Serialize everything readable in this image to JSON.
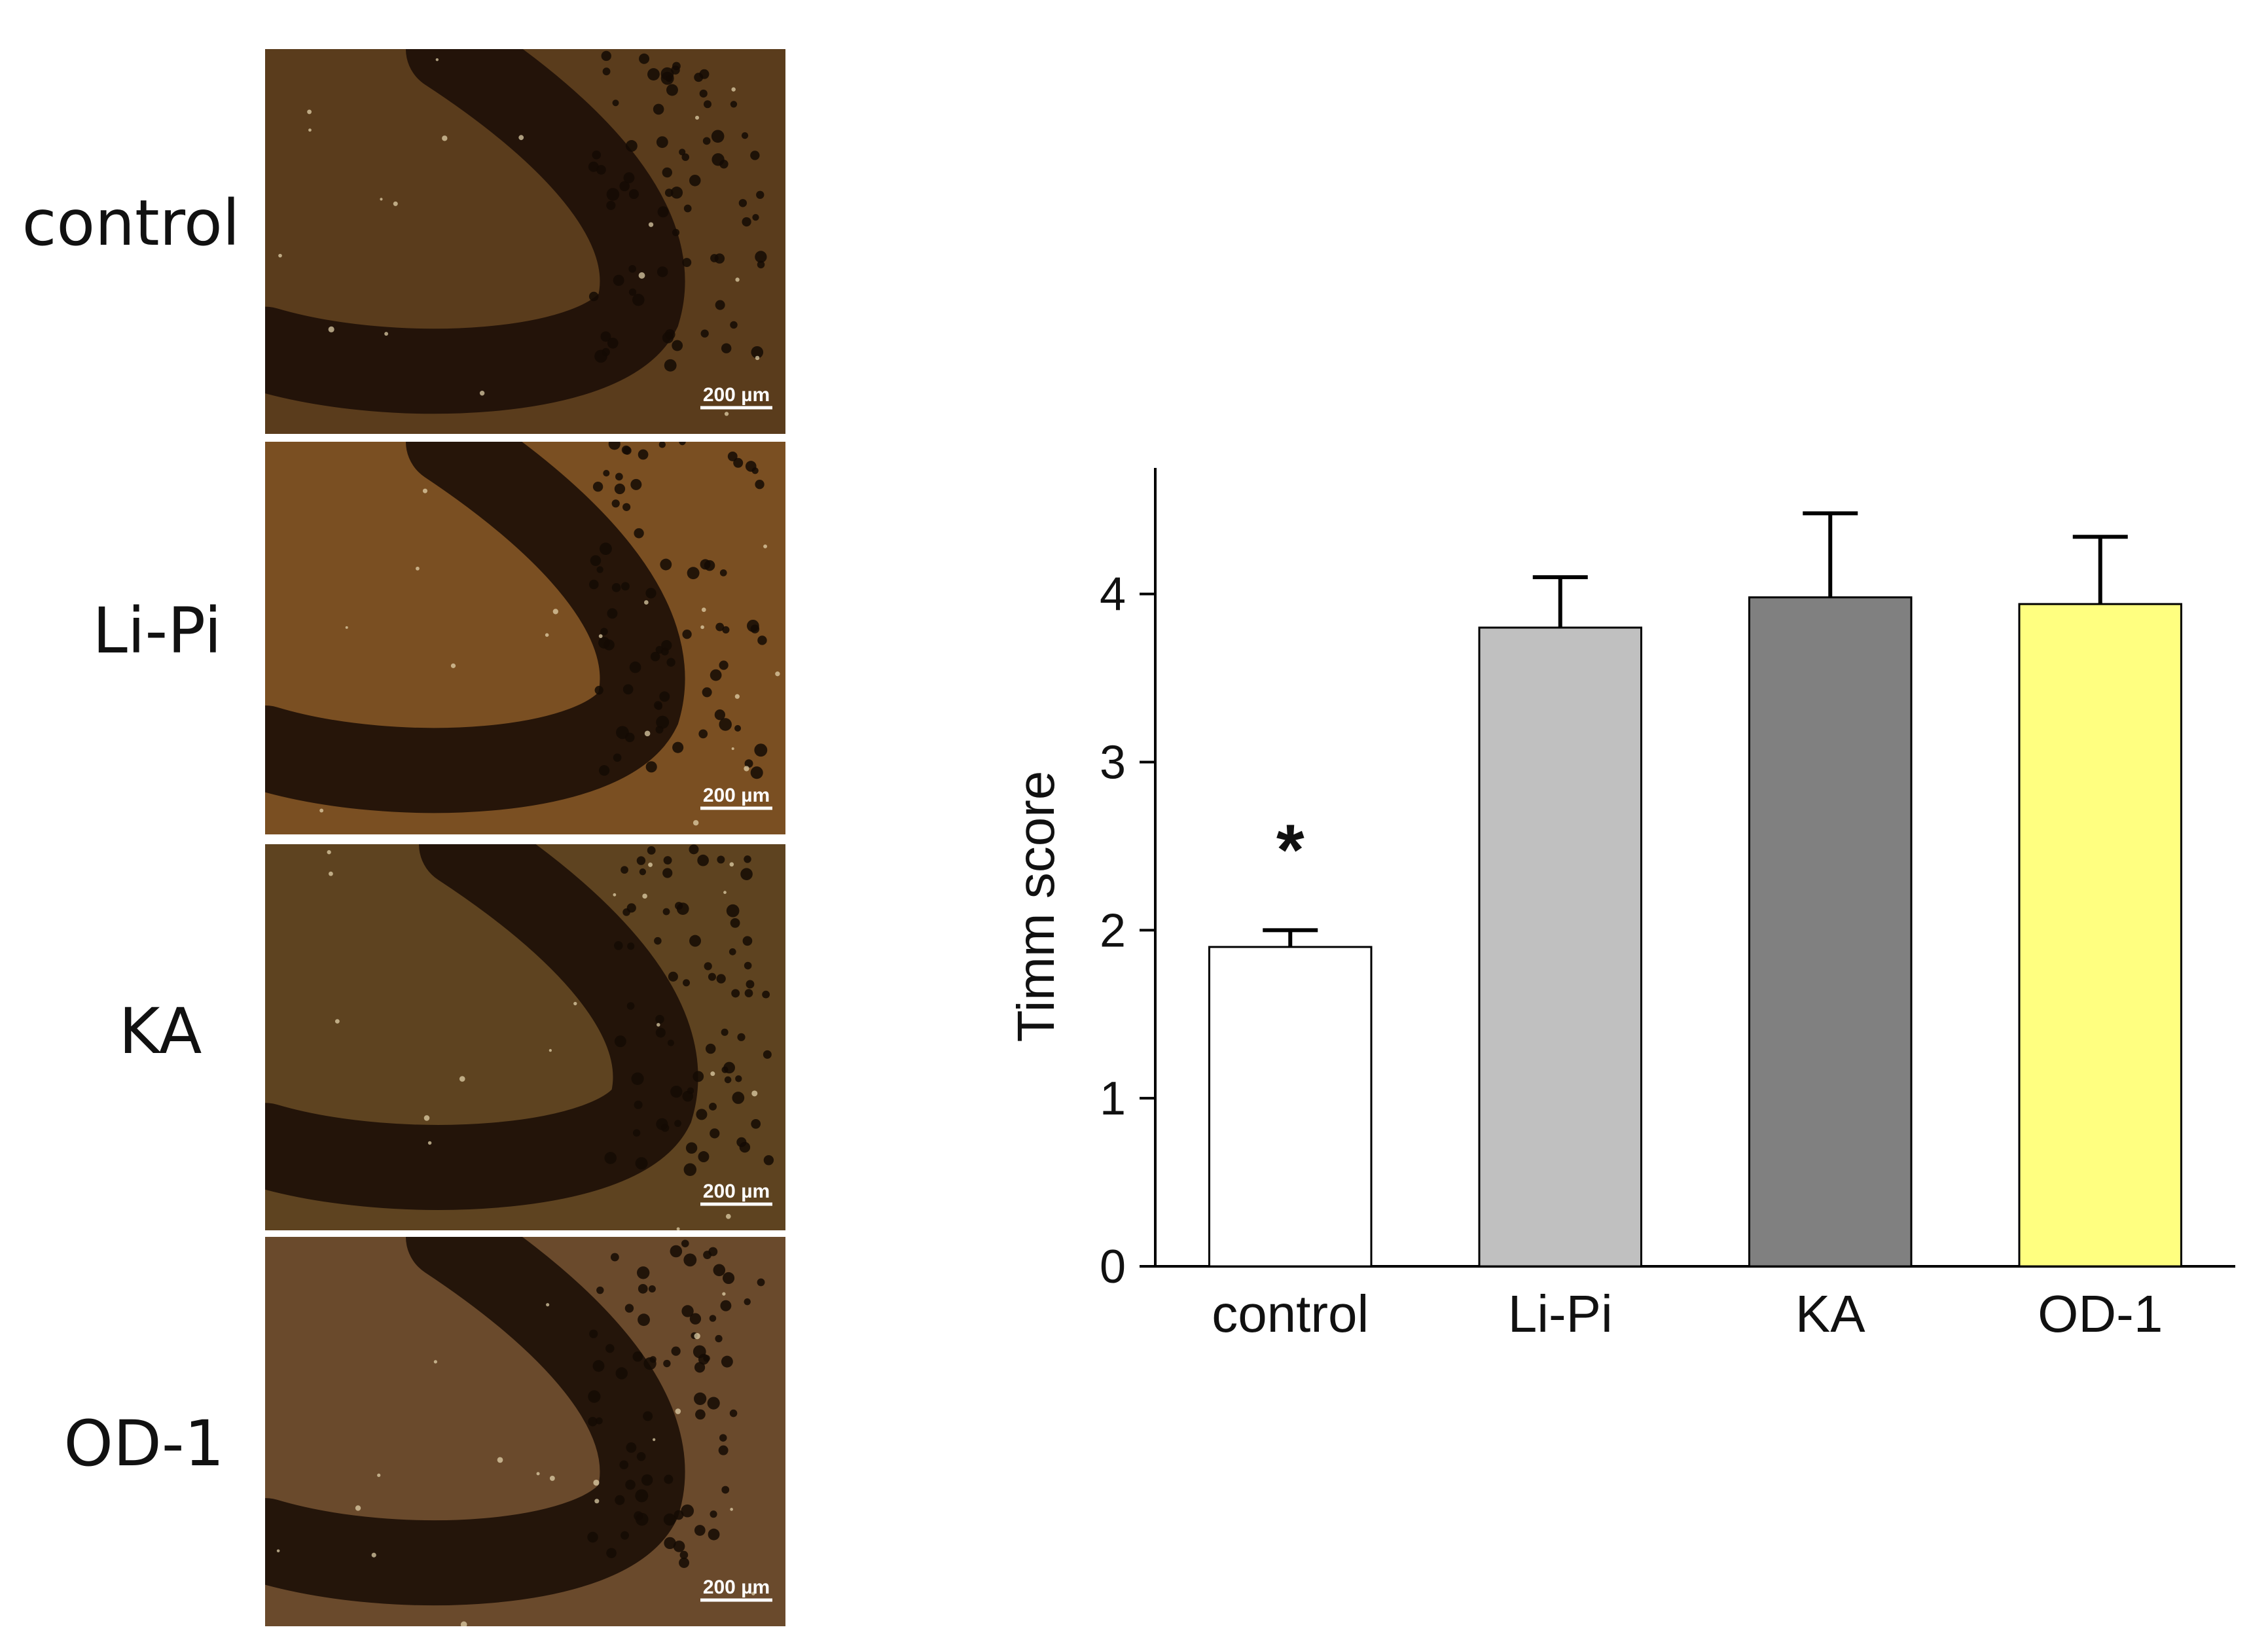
{
  "panels": [
    {
      "label": "control",
      "scalebar": "200 µm",
      "tone": "#5a3c1c"
    },
    {
      "label": "Li-Pi",
      "scalebar": "200 µm",
      "tone": "#7a4f22"
    },
    {
      "label": "KA",
      "scalebar": "200 µm",
      "tone": "#5e4320"
    },
    {
      "label": "OD-1",
      "scalebar": "200 µm",
      "tone": "#6a4a2c"
    }
  ],
  "chart_data": {
    "type": "bar",
    "categories": [
      "control",
      "Li-Pi",
      "KA",
      "OD-1"
    ],
    "values": [
      1.9,
      3.8,
      3.98,
      3.94
    ],
    "errors": [
      0.1,
      0.3,
      0.5,
      0.4
    ],
    "colors": [
      "#ffffff",
      "#c0c0c0",
      "#808080",
      "#ffff80"
    ],
    "ylabel": "Timm score",
    "yticks": [
      0,
      1,
      2,
      3,
      4
    ],
    "ylim": [
      0,
      4.75
    ],
    "annotations": [
      {
        "category": "control",
        "text": "*"
      }
    ],
    "grid": false
  }
}
